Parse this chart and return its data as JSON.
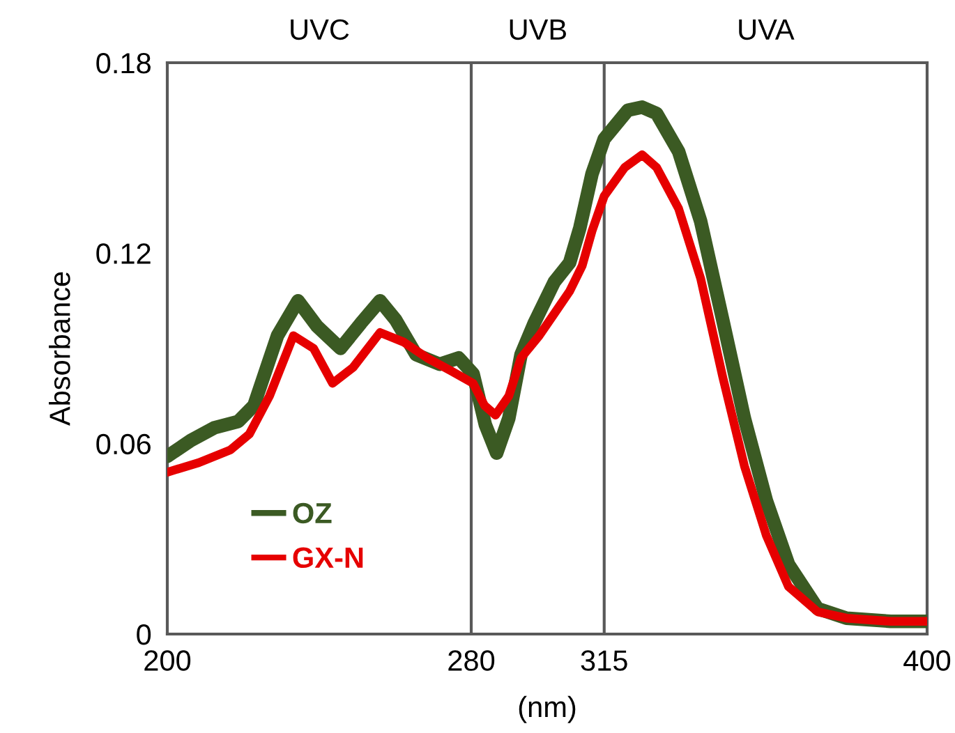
{
  "chart_data": {
    "type": "line",
    "xlabel": "(nm)",
    "ylabel": "Absorbance",
    "annotations": [
      "UVC",
      "UVB",
      "UVA"
    ],
    "xlim": [
      200,
      400
    ],
    "xticks": [
      200,
      280,
      315,
      400
    ],
    "ylim": [
      0,
      0.18
    ],
    "yticks": [
      0,
      0.06,
      0.12,
      0.18
    ],
    "grid": false,
    "legend": "bottom left",
    "marker": "none",
    "line_style": "solid",
    "ref_lines": [
      {
        "axis": "x",
        "value": 280,
        "color": "#595959"
      },
      {
        "axis": "x",
        "value": 315,
        "color": "#595959"
      }
    ],
    "series": [
      {
        "name": "OZ",
        "color": "#3b5a23",
        "x": [
          200,
          206.2,
          212.4,
          218.7,
          222.8,
          229.0,
          234.4,
          239.4,
          245.6,
          251.0,
          256.0,
          260.1,
          265.5,
          271.7,
          276.7,
          280.5,
          283.7,
          286.7,
          289.9,
          293.1,
          296.6,
          301.9,
          305.9,
          308.6,
          311.8,
          315,
          321.2,
          325.0,
          328.8,
          334.6,
          340.4,
          346.2,
          351.9,
          357.7,
          363.5,
          371.2,
          378.8,
          390.4,
          400
        ],
        "values": [
          0.056,
          0.061,
          0.065,
          0.067,
          0.072,
          0.094,
          0.105,
          0.097,
          0.09,
          0.098,
          0.105,
          0.099,
          0.088,
          0.085,
          0.087,
          0.082,
          0.066,
          0.057,
          0.068,
          0.088,
          0.098,
          0.111,
          0.117,
          0.128,
          0.145,
          0.156,
          0.165,
          0.166,
          0.164,
          0.152,
          0.13,
          0.099,
          0.068,
          0.042,
          0.022,
          0.008,
          0.005,
          0.004,
          0.004
        ]
      },
      {
        "name": "GX-N",
        "color": "#e60000",
        "x": [
          200,
          208.3,
          216.6,
          221.6,
          226.9,
          233.2,
          238.5,
          243.5,
          248.9,
          256.0,
          262.2,
          268.4,
          274.6,
          280.5,
          283.5,
          286.4,
          289.9,
          293.1,
          297.9,
          301.9,
          305.9,
          309.2,
          311.8,
          315,
          320.4,
          325.0,
          328.8,
          334.6,
          340.4,
          346.2,
          351.9,
          357.7,
          363.5,
          371.2,
          378.8,
          390.4,
          400
        ],
        "values": [
          0.051,
          0.054,
          0.058,
          0.063,
          0.075,
          0.094,
          0.09,
          0.079,
          0.084,
          0.095,
          0.092,
          0.087,
          0.083,
          0.079,
          0.072,
          0.069,
          0.075,
          0.087,
          0.094,
          0.101,
          0.108,
          0.116,
          0.127,
          0.138,
          0.147,
          0.151,
          0.147,
          0.134,
          0.112,
          0.081,
          0.053,
          0.031,
          0.015,
          0.007,
          0.005,
          0.004,
          0.004
        ]
      }
    ]
  }
}
